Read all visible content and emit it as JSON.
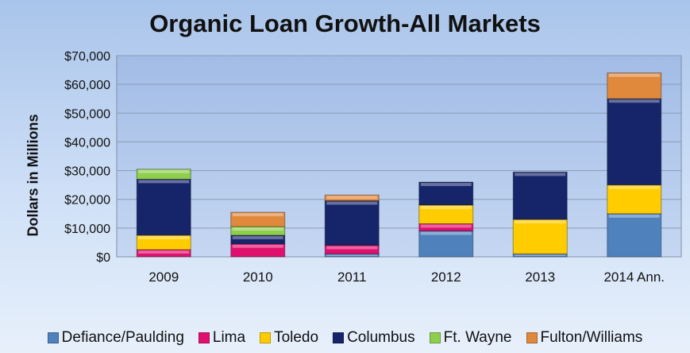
{
  "chart_data": {
    "type": "bar",
    "stacked": true,
    "title": "Organic Loan Growth-All Markets",
    "xlabel": "",
    "ylabel": "Dollars in Millions",
    "ylim": [
      0,
      70000
    ],
    "yticks": [
      0,
      10000,
      20000,
      30000,
      40000,
      50000,
      60000,
      70000
    ],
    "ytick_labels": [
      "$0",
      "$10,000",
      "$20,000",
      "$30,000",
      "$40,000",
      "$50,000",
      "$60,000",
      "$70,000"
    ],
    "categories": [
      "2009",
      "2010",
      "2011",
      "2012",
      "2013",
      "2014 Ann."
    ],
    "legend_position": "bottom",
    "series": [
      {
        "name": "Defiance/Paulding",
        "color": "#4f81bd",
        "values": [
          0,
          0,
          1000,
          9000,
          1000,
          15000
        ]
      },
      {
        "name": "Lima",
        "color": "#e0106e",
        "values": [
          2500,
          4500,
          3000,
          2500,
          0,
          0
        ]
      },
      {
        "name": "Toledo",
        "color": "#ffcc00",
        "values": [
          5000,
          0,
          0,
          6500,
          12000,
          10000
        ]
      },
      {
        "name": "Columbus",
        "color": "#16246a",
        "values": [
          19500,
          3000,
          15500,
          8000,
          16500,
          30000
        ]
      },
      {
        "name": "Ft. Wayne",
        "color": "#8fce4c",
        "values": [
          3500,
          3000,
          0,
          0,
          0,
          0
        ]
      },
      {
        "name": "Fulton/Williams",
        "color": "#e0883c",
        "values": [
          0,
          5000,
          2000,
          0,
          0,
          9000
        ]
      }
    ]
  }
}
